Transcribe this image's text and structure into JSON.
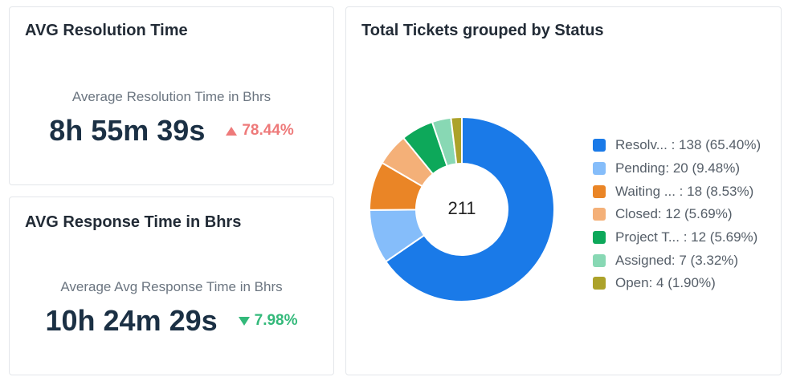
{
  "resolution_card": {
    "title": "AVG Resolution Time",
    "subtitle": "Average Resolution Time in Bhrs",
    "value": "8h 55m 39s",
    "change": "78.44%",
    "change_direction": "up",
    "change_color": "#ee7a7a"
  },
  "response_card": {
    "title": "AVG Response Time in Bhrs",
    "subtitle": "Average Avg Response Time in Bhrs",
    "value": "10h 24m 29s",
    "change": "7.98%",
    "change_direction": "down",
    "change_color": "#33b97a"
  },
  "status_card": {
    "title": "Total Tickets grouped by Status"
  },
  "chart_data": {
    "type": "pie",
    "subtype": "donut",
    "center_label": "211",
    "total": 211,
    "categories": [
      "Resolv...",
      "Pending",
      "Waiting ...",
      "Closed",
      "Project T...",
      "Assigned",
      "Open"
    ],
    "values": [
      138,
      20,
      18,
      12,
      12,
      7,
      4
    ],
    "percentages": [
      65.4,
      9.48,
      8.53,
      5.69,
      5.69,
      3.32,
      1.9
    ],
    "legend_labels": [
      "Resolv... : 138 (65.40%)",
      "Pending: 20 (9.48%)",
      "Waiting ...  : 18 (8.53%)",
      "Closed: 12 (5.69%)",
      "Project T... : 12 (5.69%)",
      "Assigned: 7 (3.32%)",
      "Open: 4 (1.90%)"
    ],
    "colors": [
      "#1a7ae8",
      "#85bdfa",
      "#ea8526",
      "#f4b078",
      "#0da85a",
      "#88d8b4",
      "#aca22a"
    ],
    "legend_position": "right"
  }
}
